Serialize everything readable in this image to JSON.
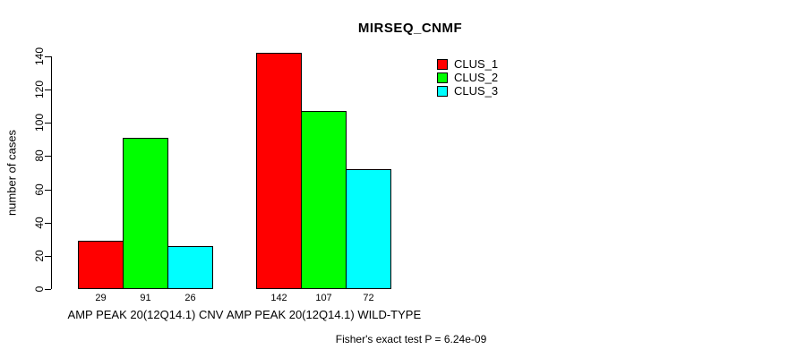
{
  "title": "MIRSEQ_CNMF",
  "chart_data": {
    "type": "bar",
    "title": "MIRSEQ_CNMF",
    "xlabel": "",
    "ylabel": "number of cases",
    "ylim": [
      0,
      140
    ],
    "yticks": [
      0,
      20,
      40,
      60,
      80,
      100,
      120,
      140
    ],
    "grid": false,
    "legend_position": "top-right",
    "categories": [
      "AMP PEAK 20(12Q14.1) CNV",
      "AMP PEAK 20(12Q14.1) WILD-TYPE"
    ],
    "series": [
      {
        "name": "CLUS_1",
        "color": "#ff0000",
        "values": [
          29,
          142
        ]
      },
      {
        "name": "CLUS_2",
        "color": "#00ff00",
        "values": [
          91,
          107
        ]
      },
      {
        "name": "CLUS_3",
        "color": "#00ffff",
        "values": [
          26,
          72
        ]
      }
    ],
    "bar_value_labels": [
      [
        29,
        91,
        26
      ],
      [
        142,
        107,
        72
      ]
    ],
    "annotation": "Fisher's exact test P = 6.24e-09"
  },
  "colors": {
    "clus_1": "#ff0000",
    "clus_2": "#00ff00",
    "clus_3": "#00ffff",
    "axis": "#000000",
    "background": "#ffffff"
  }
}
